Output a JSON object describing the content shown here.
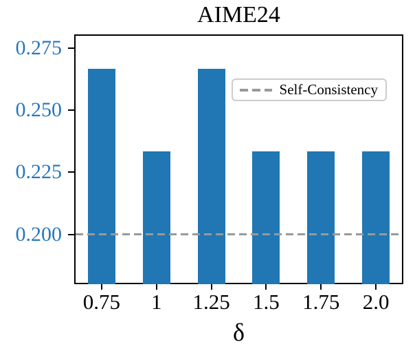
{
  "chart_data": {
    "type": "bar",
    "title": "AIME24",
    "xlabel": "δ",
    "ylabel": "",
    "categories": [
      "0.75",
      "1",
      "1.25",
      "1.5",
      "1.75",
      "2.0"
    ],
    "values": [
      0.2667,
      0.2333,
      0.2667,
      0.2333,
      0.2333,
      0.2333
    ],
    "y_ticks": {
      "values": [
        0.2,
        0.225,
        0.25,
        0.275
      ],
      "labels": [
        "0.200",
        "0.225",
        "0.250",
        "0.275"
      ]
    },
    "ylim": [
      0.18,
      0.2805
    ],
    "grid": false,
    "bar_color": "#2077b4",
    "y_tick_label_color": "#2878bd",
    "reference_line": {
      "value": 0.2,
      "label": "Self-Consistency",
      "color": "#999999",
      "style": "dashed"
    },
    "legend": {
      "position": "upper right",
      "entries": [
        {
          "label": "Self-Consistency",
          "color": "#999999",
          "style": "dashed"
        }
      ]
    }
  }
}
